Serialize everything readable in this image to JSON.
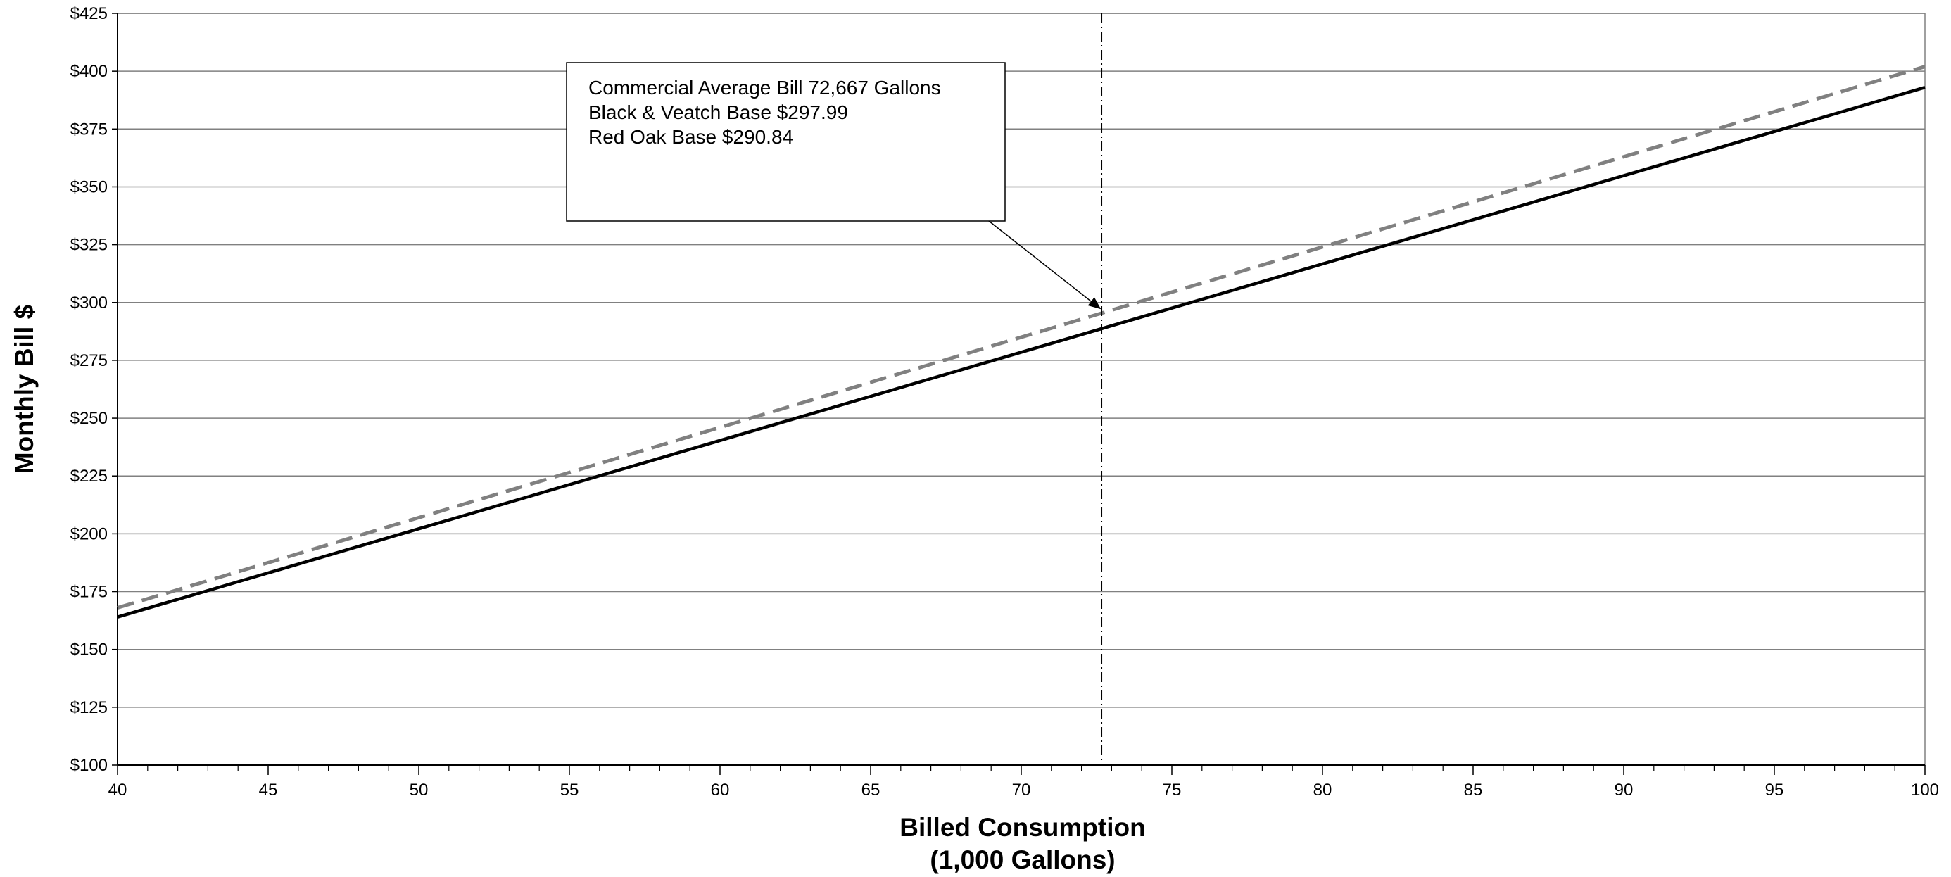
{
  "chart_data": {
    "type": "line",
    "title": "",
    "xlabel": [
      "Billed Consumption",
      "(1,000 Gallons)"
    ],
    "ylabel": "Monthly Bill $",
    "xlim": [
      40,
      100
    ],
    "ylim": [
      100,
      425
    ],
    "x_ticks": [
      40,
      45,
      50,
      55,
      60,
      65,
      70,
      75,
      80,
      85,
      90,
      95,
      100
    ],
    "x_tick_labels": [
      "40",
      "45",
      "50",
      "55",
      "60",
      "65",
      "70",
      "75",
      "80",
      "85",
      "90",
      "95",
      "100"
    ],
    "y_ticks": [
      100,
      125,
      150,
      175,
      200,
      225,
      250,
      275,
      300,
      325,
      350,
      375,
      400,
      425
    ],
    "y_tick_labels": [
      "$100",
      "$125",
      "$150",
      "$175",
      "$200",
      "$225",
      "$250",
      "$275",
      "$300",
      "$325",
      "$350",
      "$375",
      "$400",
      "$425"
    ],
    "grid": true,
    "series": [
      {
        "x": [
          40,
          100
        ],
        "values": [
          164,
          393
        ],
        "color": "#000000",
        "style": "solid"
      },
      {
        "x": [
          40,
          100
        ],
        "values": [
          168,
          402
        ],
        "color": "#808080",
        "style": "dashed"
      }
    ],
    "reference_line": {
      "x": 72.667,
      "style": "dash-dot",
      "color": "#000000"
    },
    "annotation": {
      "lines": [
        "Commercial Average Bill 72,667 Gallons",
        "Black & Veatch Base $297.99",
        "Red Oak Base $290.84"
      ],
      "arrow_target": {
        "x": 72.667,
        "y": 298
      }
    }
  }
}
